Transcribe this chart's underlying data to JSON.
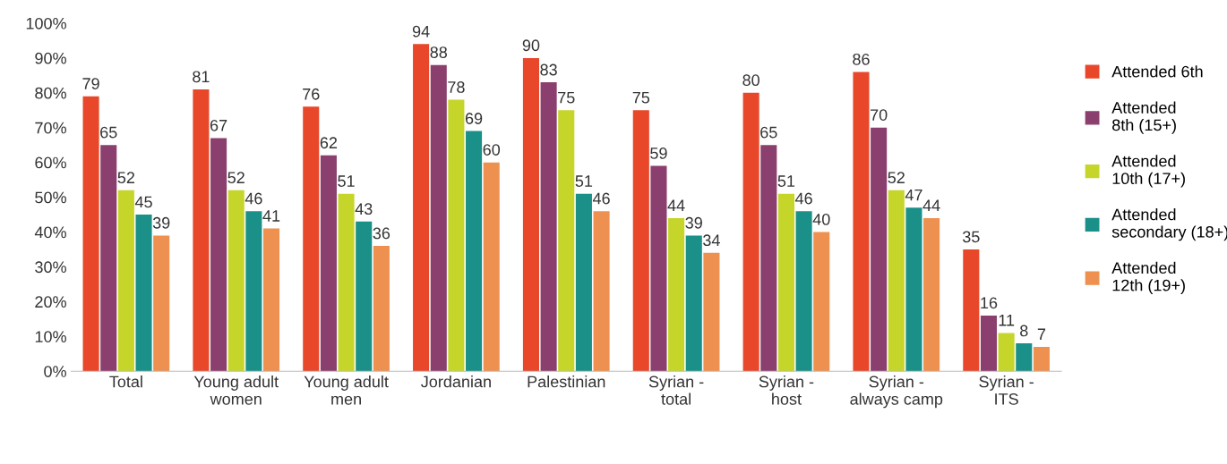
{
  "chart_data": {
    "type": "bar",
    "categories": [
      "Total",
      "Young adult\nwomen",
      "Young adult\nmen",
      "Jordanian",
      "Palestinian",
      "Syrian -\ntotal",
      "Syrian -\nhost",
      "Syrian -\nalways camp",
      "Syrian -\nITS"
    ],
    "series": [
      {
        "name": "Attended 6th",
        "color": "#e8472a",
        "values": [
          79,
          81,
          76,
          94,
          90,
          75,
          80,
          86,
          35
        ]
      },
      {
        "name": "Attended\n8th (15+)",
        "color": "#8b3f6e",
        "values": [
          65,
          67,
          62,
          88,
          83,
          59,
          65,
          70,
          16
        ]
      },
      {
        "name": "Attended\n10th (17+)",
        "color": "#c5d52a",
        "values": [
          52,
          52,
          51,
          78,
          75,
          44,
          51,
          52,
          11
        ]
      },
      {
        "name": "Attended\nsecondary (18+)",
        "color": "#1a9088",
        "values": [
          45,
          46,
          43,
          69,
          51,
          39,
          46,
          47,
          8
        ]
      },
      {
        "name": "Attended\n12th (19+)",
        "color": "#ee9150",
        "values": [
          39,
          41,
          36,
          60,
          46,
          34,
          40,
          44,
          7
        ]
      }
    ],
    "ylim": [
      0,
      100
    ],
    "yticks": [
      {
        "value": 0,
        "label": "0%"
      },
      {
        "value": 10,
        "label": "10%"
      },
      {
        "value": 20,
        "label": "20%"
      },
      {
        "value": 30,
        "label": "30%"
      },
      {
        "value": 40,
        "label": "40%"
      },
      {
        "value": 50,
        "label": "50%"
      },
      {
        "value": 60,
        "label": "60%"
      },
      {
        "value": 70,
        "label": "70%"
      },
      {
        "value": 80,
        "label": "80%"
      },
      {
        "value": 90,
        "label": "90%"
      },
      {
        "value": 100,
        "label": "100%"
      }
    ],
    "data_labels": true,
    "grid": false,
    "legend": "right"
  }
}
